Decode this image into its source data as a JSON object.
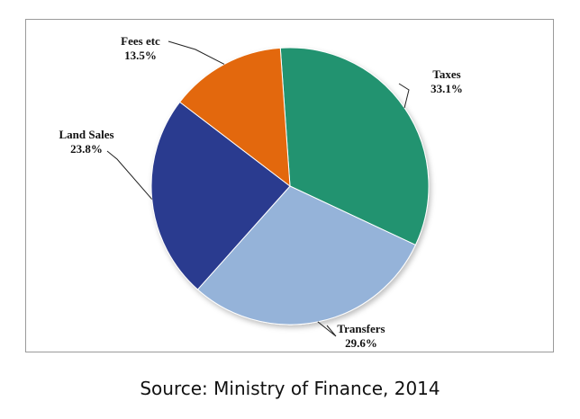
{
  "chart_data": {
    "type": "pie",
    "slices": [
      {
        "label": "Taxes",
        "value": 33.1,
        "value_label": "33.1%",
        "color": "#229370"
      },
      {
        "label": "Transfers",
        "value": 29.6,
        "value_label": "29.6%",
        "color": "#95b3d9"
      },
      {
        "label": "Land Sales",
        "value": 23.8,
        "value_label": "23.8%",
        "color": "#2b3a8f"
      },
      {
        "label": "Fees etc",
        "value": 13.5,
        "value_label": "13.5%",
        "color": "#e3680b"
      }
    ],
    "legend": "none",
    "title": ""
  },
  "source": "Source: Ministry of Finance, 2014"
}
